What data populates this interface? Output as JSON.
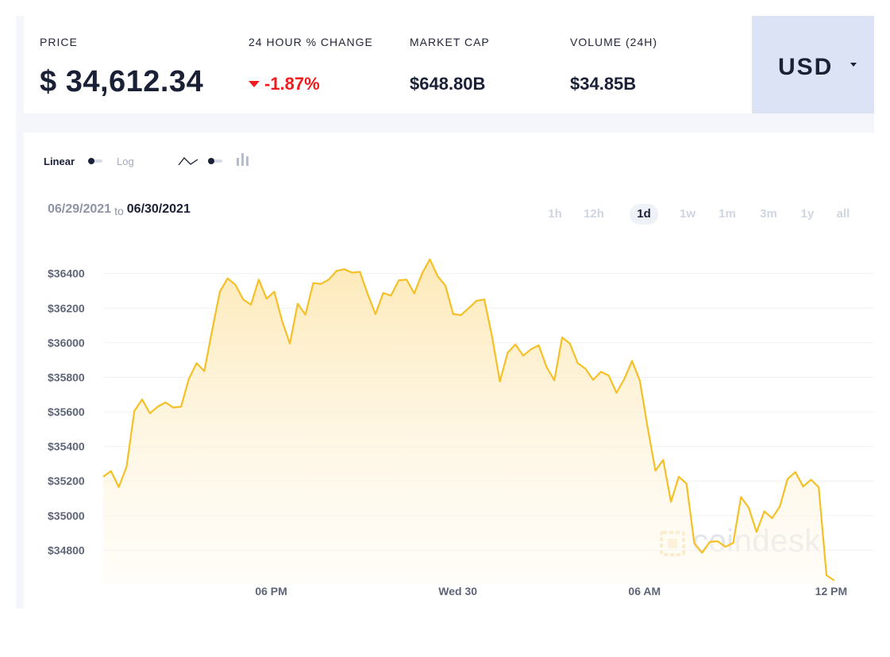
{
  "stats": {
    "price_label": "PRICE",
    "price_value": "$ 34,612.34",
    "change_label": "24 HOUR % CHANGE",
    "change_value": "-1.87%",
    "market_cap_label": "MARKET CAP",
    "market_cap_value": "$648.80B",
    "volume_label": "VOLUME (24H)",
    "volume_value": "$34.85B",
    "negative_color": "#ee1c1c"
  },
  "currency": {
    "label": "USD"
  },
  "controls": {
    "linear_label": "Linear",
    "log_label": "Log",
    "line_icon": "line-chart-icon",
    "candle_icon": "candlestick-icon"
  },
  "date_range": {
    "from": "06/29/2021",
    "to_word": "to",
    "to": "06/30/2021"
  },
  "range_tabs": [
    {
      "label": "1h",
      "active": false
    },
    {
      "label": "12h",
      "active": false
    },
    {
      "label": "1d",
      "active": true
    },
    {
      "label": "1w",
      "active": false
    },
    {
      "label": "1m",
      "active": false
    },
    {
      "label": "3m",
      "active": false
    },
    {
      "label": "1y",
      "active": false
    },
    {
      "label": "all",
      "active": false
    }
  ],
  "watermark": {
    "text": "coindesk"
  },
  "chart_data": {
    "type": "area",
    "title": "",
    "xlabel": "",
    "ylabel": "",
    "color": "#f5c026",
    "fill_color": "#fdf2cf",
    "grid": true,
    "ylim": [
      34600,
      36550
    ],
    "xlim": [
      0,
      98
    ],
    "y_ticks": [
      34800,
      35000,
      35200,
      35400,
      35600,
      35800,
      36000,
      36200,
      36400
    ],
    "y_tick_labels": [
      "$34800",
      "$35000",
      "$35200",
      "$35400",
      "$35600",
      "$35800",
      "$36000",
      "$36200",
      "$36400"
    ],
    "x_ticks": [
      {
        "x": 21.6,
        "label": "06 PM"
      },
      {
        "x": 45.6,
        "label": "Wed 30"
      },
      {
        "x": 69.6,
        "label": "06 AM"
      },
      {
        "x": 93.6,
        "label": "12 PM"
      }
    ],
    "series": [
      {
        "name": "",
        "values": [
          35225,
          35258,
          35165,
          35282,
          35605,
          35672,
          35592,
          35630,
          35655,
          35625,
          35630,
          35790,
          35882,
          35835,
          36070,
          36295,
          36372,
          36335,
          36250,
          36220,
          36365,
          36255,
          36295,
          36125,
          35995,
          36225,
          36162,
          36345,
          36340,
          36365,
          36415,
          36425,
          36405,
          36410,
          36282,
          36165,
          36288,
          36272,
          36360,
          36365,
          36285,
          36400,
          36482,
          36385,
          36330,
          36165,
          36160,
          36200,
          36242,
          36250,
          36035,
          35775,
          35942,
          35990,
          35925,
          35962,
          35985,
          35860,
          35782,
          36030,
          35995,
          35882,
          35850,
          35785,
          35832,
          35810,
          35710,
          35790,
          35895,
          35780,
          35510,
          35260,
          35322,
          35080,
          35225,
          35185,
          34840,
          34785,
          34848,
          34852,
          34820,
          34842,
          35108,
          35045,
          34905,
          35025,
          34985,
          35052,
          35212,
          35252,
          35168,
          35208,
          35165,
          34655,
          34625
        ]
      }
    ]
  }
}
